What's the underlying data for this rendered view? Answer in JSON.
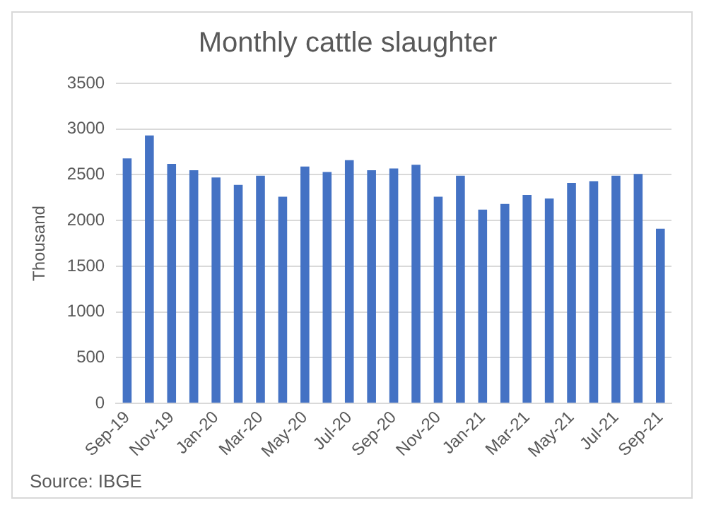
{
  "chart_data": {
    "type": "bar",
    "title": "Monthly cattle slaughter",
    "ylabel": "Thousand",
    "categories": [
      "Sep-19",
      null,
      "Nov-19",
      null,
      "Jan-20",
      null,
      "Mar-20",
      null,
      "May-20",
      null,
      "Jul-20",
      null,
      "Sep-20",
      null,
      "Nov-20",
      null,
      "Jan-21",
      null,
      "Mar-21",
      null,
      "May-21",
      null,
      "Jul-21",
      null,
      "Sep-21"
    ],
    "values": [
      2680,
      2930,
      2620,
      2550,
      2470,
      2390,
      2490,
      2260,
      2590,
      2530,
      2660,
      2550,
      2570,
      2610,
      2260,
      2490,
      2120,
      2180,
      2280,
      2240,
      2410,
      2430,
      2490,
      2510,
      1910
    ],
    "color": "#4472c4",
    "ylim": [
      0,
      3500
    ],
    "yticks": [
      0,
      500,
      1000,
      1500,
      2000,
      2500,
      3000,
      3500
    ],
    "grid": "y",
    "annotations": [
      "Source: IBGE"
    ]
  }
}
